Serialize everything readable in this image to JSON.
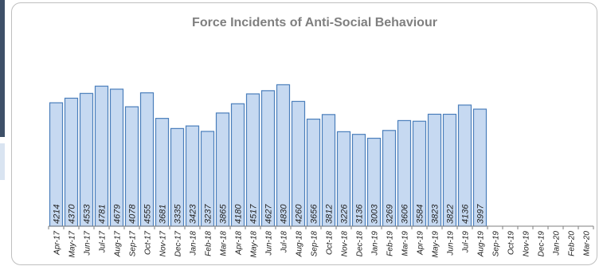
{
  "chart_data": {
    "type": "bar",
    "title": "Force Incidents of Anti-Social Behaviour",
    "xlabel": "",
    "ylabel": "",
    "categories": [
      "Apr-17",
      "May-17",
      "Jun-17",
      "Jul-17",
      "Aug-17",
      "Sep-17",
      "Oct-17",
      "Nov-17",
      "Dec-17",
      "Jan-18",
      "Feb-18",
      "Mar-18",
      "Apr-18",
      "May-18",
      "Jun-18",
      "Jul-18",
      "Aug-18",
      "Sep-18",
      "Oct-18",
      "Nov-18",
      "Dec-18",
      "Jan-19",
      "Feb-19",
      "Mar-19",
      "Apr-19",
      "May-19",
      "Jun-19",
      "Jul-19",
      "Aug-19",
      "Sep-19",
      "Oct-19",
      "Nov-19",
      "Dec-19",
      "Jan-20",
      "Feb-20",
      "Mar-20"
    ],
    "values": [
      4214,
      4370,
      4533,
      4781,
      4679,
      4078,
      4555,
      3681,
      3335,
      3423,
      3237,
      3865,
      4180,
      4517,
      4627,
      4830,
      4260,
      3656,
      3812,
      3226,
      3136,
      3003,
      3269,
      3606,
      3584,
      3823,
      3822,
      4136,
      3997,
      null,
      null,
      null,
      null,
      null,
      null,
      null
    ],
    "value_labels": [
      "4214",
      "4370",
      "4533",
      "4781",
      "4679",
      "4078",
      "4555",
      "3681",
      "3335",
      "3423",
      "3237",
      "3865",
      "4180",
      "4517",
      "4627",
      "4830",
      "4260",
      "3656",
      "3812",
      "3226",
      "3136",
      "3003",
      "3269",
      "3606",
      "3584",
      "3823",
      "3822",
      "4136",
      "3997",
      "",
      "",
      "",
      "",
      "",
      "",
      ""
    ],
    "ylim": [
      0,
      6500
    ],
    "grid": false,
    "legend": "none",
    "colors": {
      "bar_fill": "#c6d9f1",
      "bar_stroke": "#4a7ebb",
      "title": "#7f7f7f",
      "axis": "#7f7f7f",
      "text": "#222222"
    }
  }
}
